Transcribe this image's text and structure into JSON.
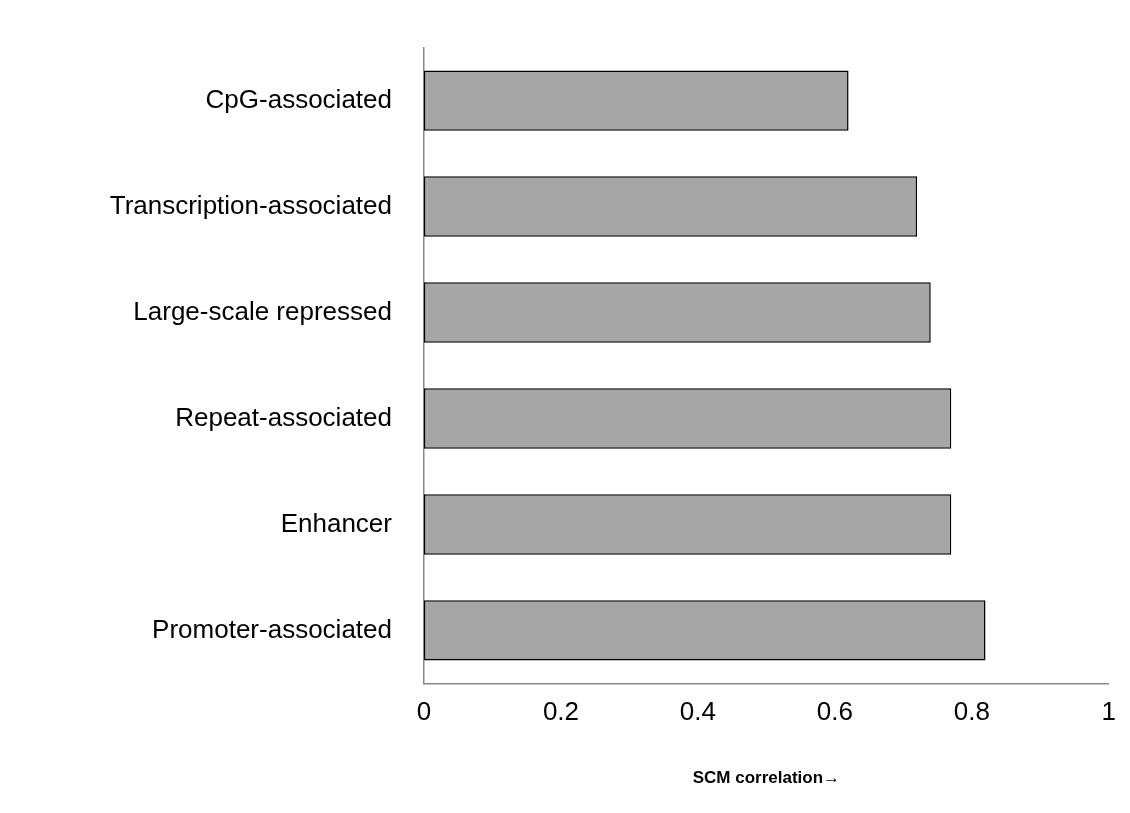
{
  "chart_data": {
    "type": "bar",
    "orientation": "horizontal",
    "categories": [
      "CpG-associated",
      "Transcription-associated",
      "Large-scale repressed",
      "Repeat-associated",
      "Enhancer",
      "Promoter-associated"
    ],
    "values": [
      0.62,
      0.72,
      0.74,
      0.77,
      0.77,
      0.82
    ],
    "color": "#a6a6a6",
    "xlabel": "SCM correlation→",
    "xlim": [
      0,
      1
    ],
    "xticks": [
      0,
      {
        "value": 0.2,
        "label": "0.2"
      },
      {
        "value": 0.4,
        "label": "0.4"
      },
      {
        "value": 0.6,
        "label": "0.6"
      },
      {
        "value": 0.8,
        "label": "0.8"
      },
      1
    ],
    "grid": false,
    "legend": false
  }
}
